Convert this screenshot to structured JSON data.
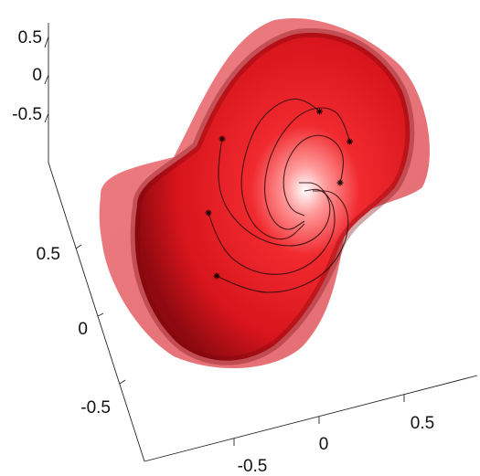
{
  "chart_data": {
    "type": "surface3d",
    "title": "",
    "xlabel": "",
    "ylabel": "",
    "zlabel": "",
    "axes": {
      "x": {
        "ticks": [
          -0.5,
          0,
          0.5
        ],
        "tick_labels": [
          "-0.5",
          "0",
          "0.5"
        ]
      },
      "y": {
        "ticks": [
          -0.5,
          0,
          0.5
        ],
        "tick_labels": [
          "-0.5",
          "0",
          "0.5"
        ]
      },
      "z": {
        "ticks": [
          -0.5,
          0,
          0.5
        ],
        "tick_labels": [
          "-0.5",
          "0",
          "0.5"
        ]
      }
    },
    "grid": false,
    "colors": {
      "outer_surface": "#e8585f",
      "inner_surface": "#d8141c",
      "streamlines": "#2a0a0a",
      "background": "#ffffff"
    },
    "surfaces": [
      {
        "name": "outer",
        "opacity": 0.55
      },
      {
        "name": "inner",
        "opacity": 0.95
      }
    ],
    "streamlines": [
      {
        "seed": [
          0.33,
          0.62,
          0.0
        ],
        "path": [
          [
            0.33,
            0.62
          ],
          [
            0.22,
            0.72
          ],
          [
            0.05,
            0.7
          ],
          [
            -0.12,
            0.55
          ],
          [
            -0.22,
            0.3
          ],
          [
            -0.25,
            0.05
          ],
          [
            -0.18,
            -0.18
          ],
          [
            -0.05,
            -0.3
          ],
          [
            0.1,
            -0.32
          ],
          [
            0.22,
            -0.2
          ]
        ]
      },
      {
        "seed": [
          0.55,
          0.4,
          0.0
        ],
        "path": [
          [
            0.55,
            0.4
          ],
          [
            0.5,
            0.58
          ],
          [
            0.38,
            0.66
          ],
          [
            0.2,
            0.62
          ],
          [
            0.05,
            0.46
          ],
          [
            -0.05,
            0.25
          ],
          [
            -0.08,
            0.02
          ],
          [
            -0.02,
            -0.18
          ],
          [
            0.1,
            -0.26
          ],
          [
            0.22,
            -0.18
          ]
        ]
      },
      {
        "seed": [
          0.48,
          0.1,
          0.0
        ],
        "path": [
          [
            0.48,
            0.1
          ],
          [
            0.52,
            0.25
          ],
          [
            0.46,
            0.4
          ],
          [
            0.32,
            0.46
          ],
          [
            0.18,
            0.4
          ],
          [
            0.08,
            0.24
          ],
          [
            0.06,
            0.05
          ],
          [
            0.12,
            -0.1
          ],
          [
            0.22,
            -0.14
          ]
        ]
      },
      {
        "seed": [
          -0.38,
          0.42,
          0.0
        ],
        "path": [
          [
            -0.38,
            0.42
          ],
          [
            -0.42,
            0.2
          ],
          [
            -0.38,
            -0.05
          ],
          [
            -0.22,
            -0.25
          ],
          [
            0.0,
            -0.36
          ],
          [
            0.22,
            -0.36
          ],
          [
            0.38,
            -0.24
          ],
          [
            0.42,
            -0.05
          ],
          [
            0.32,
            0.1
          ],
          [
            0.18,
            0.1
          ]
        ]
      },
      {
        "seed": [
          -0.48,
          -0.12,
          0.0
        ],
        "path": [
          [
            -0.48,
            -0.12
          ],
          [
            -0.4,
            -0.38
          ],
          [
            -0.18,
            -0.55
          ],
          [
            0.08,
            -0.58
          ],
          [
            0.3,
            -0.48
          ],
          [
            0.44,
            -0.28
          ],
          [
            0.44,
            -0.06
          ],
          [
            0.34,
            0.06
          ],
          [
            0.22,
            0.04
          ]
        ]
      },
      {
        "seed": [
          -0.42,
          -0.58,
          0.0
        ],
        "path": [
          [
            -0.42,
            -0.58
          ],
          [
            -0.18,
            -0.7
          ],
          [
            0.1,
            -0.7
          ],
          [
            0.36,
            -0.58
          ],
          [
            0.52,
            -0.36
          ],
          [
            0.55,
            -0.12
          ],
          [
            0.44,
            0.04
          ],
          [
            0.28,
            0.04
          ]
        ]
      }
    ]
  }
}
